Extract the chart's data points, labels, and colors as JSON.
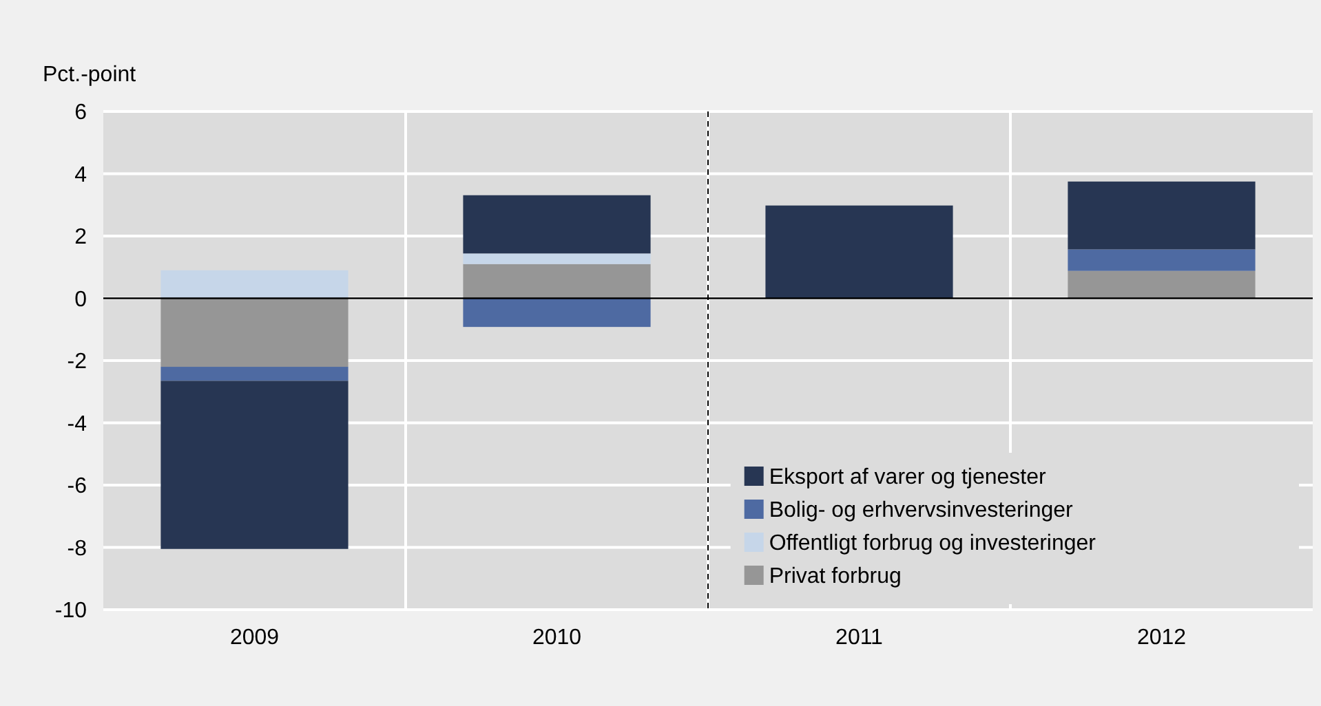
{
  "chart_data": {
    "type": "bar",
    "stacked": true,
    "ylabel": "Pct.-point",
    "x": [
      2009,
      2010,
      2011,
      2012
    ],
    "series": [
      {
        "name": "Privat forbrug",
        "color": "#969696",
        "values": [
          -2.2,
          1.1,
          0,
          0.88
        ]
      },
      {
        "name": "Offentligt forbrug og investeringer",
        "color": "#c6d6e9",
        "values": [
          0.9,
          0.34,
          0,
          0
        ]
      },
      {
        "name": "Bolig- og erhvervsinvesteringer",
        "color": "#4e6aa2",
        "values": [
          -0.45,
          -0.92,
          0,
          0.69
        ]
      },
      {
        "name": "Eksport af varer og tjenester",
        "color": "#273653",
        "values": [
          -5.4,
          1.87,
          2.98,
          2.18
        ]
      }
    ],
    "xlim": [
      2008.5,
      2012.5
    ],
    "xticks": [
      2009,
      {
        "value": 2009.5,
        "label": null
      },
      2010,
      {
        "value": 2010.5,
        "label": null
      },
      2011,
      {
        "value": 2011.5,
        "label": null
      },
      2012
    ],
    "ylim": [
      -10,
      6
    ],
    "yticks": [
      -10,
      -8,
      -6,
      -4,
      -2,
      0,
      2,
      4,
      6
    ],
    "grid": true,
    "legend": "bottom right",
    "ref_lines": [
      {
        "axis": "x",
        "value": 2010.5,
        "line_style": "dashed",
        "color": "#000000"
      }
    ]
  }
}
